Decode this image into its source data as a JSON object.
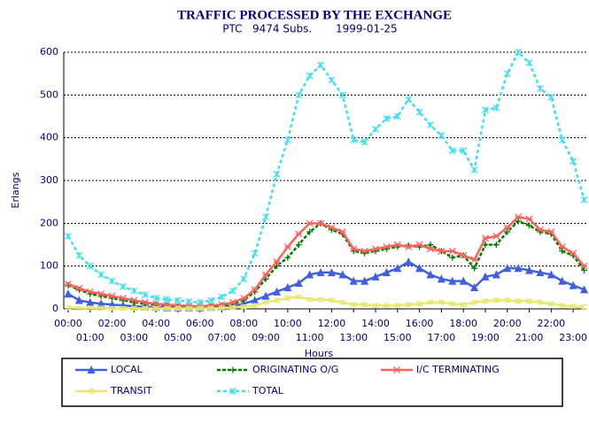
{
  "chart_data": {
    "type": "line",
    "title": "TRAFFIC PROCESSED BY THE EXCHANGE",
    "subtitle": "PTC   9474 Subs.       1999-01-25",
    "x_label": "Hours",
    "y_label": "Erlangs",
    "x": [
      0,
      0.5,
      1,
      1.5,
      2,
      2.5,
      3,
      3.5,
      4,
      4.5,
      5,
      5.5,
      6,
      6.5,
      7,
      7.5,
      8,
      8.5,
      9,
      9.5,
      10,
      10.5,
      11,
      11.5,
      12,
      12.5,
      13,
      13.5,
      14,
      14.5,
      15,
      15.5,
      16,
      16.5,
      17,
      17.5,
      18,
      18.5,
      19,
      19.5,
      20,
      20.5,
      21,
      21.5,
      22,
      22.5,
      23,
      23.5
    ],
    "series": [
      {
        "name": "LOCAL",
        "color": "#4060e0",
        "values": [
          35,
          20,
          15,
          12,
          10,
          8,
          6,
          5,
          4,
          3,
          3,
          3,
          3,
          4,
          5,
          7,
          12,
          20,
          30,
          40,
          50,
          60,
          80,
          85,
          85,
          80,
          65,
          65,
          75,
          85,
          95,
          110,
          95,
          80,
          70,
          65,
          65,
          50,
          75,
          80,
          95,
          95,
          90,
          85,
          80,
          65,
          55,
          45
        ]
      },
      {
        "name": "ORIGINATING O/G",
        "color": "#008000",
        "values": [
          55,
          45,
          35,
          30,
          25,
          20,
          15,
          12,
          10,
          8,
          6,
          5,
          5,
          6,
          8,
          12,
          20,
          40,
          70,
          100,
          120,
          150,
          180,
          200,
          185,
          175,
          135,
          130,
          135,
          140,
          145,
          148,
          145,
          150,
          135,
          120,
          125,
          95,
          150,
          150,
          180,
          205,
          195,
          180,
          175,
          135,
          125,
          90
        ]
      },
      {
        "name": "I/C TERMINATING",
        "color": "#ff6060",
        "values": [
          58,
          48,
          40,
          35,
          30,
          25,
          20,
          15,
          12,
          10,
          8,
          7,
          6,
          8,
          10,
          15,
          25,
          45,
          80,
          110,
          145,
          175,
          200,
          200,
          190,
          180,
          140,
          135,
          140,
          145,
          150,
          145,
          150,
          140,
          135,
          135,
          125,
          115,
          165,
          170,
          190,
          215,
          210,
          185,
          180,
          145,
          130,
          100
        ]
      },
      {
        "name": "TRANSIT",
        "color": "#e8e870",
        "values": [
          3,
          2,
          2,
          2,
          1,
          1,
          1,
          1,
          1,
          1,
          1,
          1,
          1,
          1,
          2,
          3,
          5,
          8,
          15,
          20,
          25,
          28,
          22,
          22,
          20,
          15,
          10,
          10,
          8,
          8,
          8,
          10,
          12,
          15,
          15,
          12,
          10,
          15,
          18,
          20,
          20,
          18,
          18,
          15,
          12,
          8,
          6,
          5
        ]
      },
      {
        "name": "TOTAL",
        "color": "#40e0f0",
        "values": [
          170,
          125,
          100,
          80,
          65,
          52,
          42,
          33,
          25,
          22,
          20,
          17,
          15,
          20,
          28,
          42,
          70,
          130,
          215,
          315,
          395,
          500,
          545,
          570,
          535,
          500,
          395,
          390,
          420,
          445,
          450,
          490,
          460,
          430,
          405,
          370,
          370,
          325,
          465,
          470,
          550,
          600,
          575,
          515,
          495,
          395,
          345,
          255
        ]
      }
    ],
    "xlim": [
      -0.2,
      23.6
    ],
    "ylim": [
      0,
      600
    ],
    "xticks": [
      {
        "value": 0,
        "label": "00:00"
      },
      {
        "value": 1,
        "label": "01:00"
      },
      {
        "value": 2,
        "label": "02:00"
      },
      {
        "value": 3,
        "label": "03:00"
      },
      {
        "value": 4,
        "label": "04:00"
      },
      {
        "value": 5,
        "label": "05:00"
      },
      {
        "value": 6,
        "label": "06:00"
      },
      {
        "value": 7,
        "label": "07:00"
      },
      {
        "value": 8,
        "label": "08:00"
      },
      {
        "value": 9,
        "label": "09:00"
      },
      {
        "value": 10,
        "label": "10:00"
      },
      {
        "value": 11,
        "label": "11:00"
      },
      {
        "value": 12,
        "label": "12:00"
      },
      {
        "value": 13,
        "label": "13:00"
      },
      {
        "value": 14,
        "label": "14:00"
      },
      {
        "value": 15,
        "label": "15:00"
      },
      {
        "value": 16,
        "label": "16:00"
      },
      {
        "value": 17,
        "label": "17:00"
      },
      {
        "value": 18,
        "label": "18:00"
      },
      {
        "value": 19,
        "label": "19:00"
      },
      {
        "value": 20,
        "label": "20:00"
      },
      {
        "value": 21,
        "label": "21:00"
      },
      {
        "value": 22,
        "label": "22:00"
      },
      {
        "value": 23,
        "label": "23:00"
      }
    ],
    "yticks": [
      0,
      100,
      200,
      300,
      400,
      500,
      600
    ],
    "grid": true
  }
}
